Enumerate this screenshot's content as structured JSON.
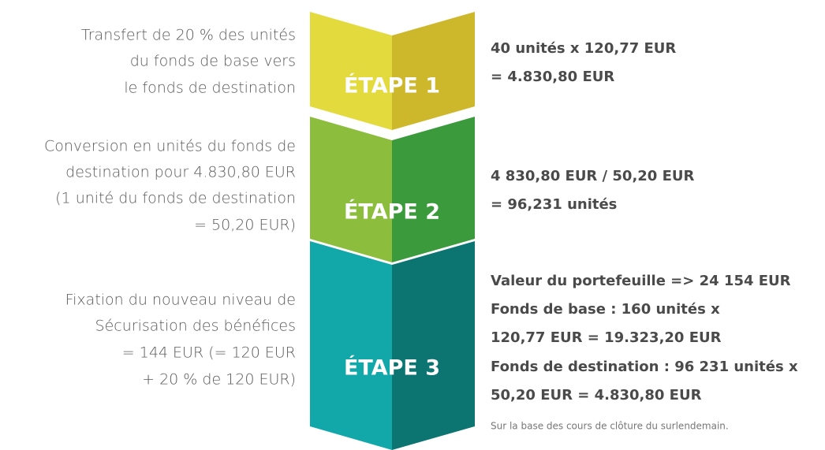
{
  "steps": [
    {
      "label": "ÉTAPE 1",
      "description": [
        "Transfert de 20 % des unités",
        "du fonds de base vers",
        "le fonds de destination"
      ],
      "calculation": [
        "40 unités x 120,77 EUR",
        "= 4.830,80 EUR"
      ]
    },
    {
      "label": "ÉTAPE 2",
      "description": [
        "Conversion en unités du fonds de",
        "destination pour 4.830,80 EUR",
        "(1 unité du fonds de destination",
        "= 50,20 EUR)"
      ],
      "calculation": [
        "4 830,80 EUR / 50,20 EUR",
        "= 96,231 unités"
      ]
    },
    {
      "label": "ÉTAPE 3",
      "description": [
        "Fixation du nouveau niveau de",
        "Sécurisation des bénéfices",
        "= 144 EUR (= 120 EUR",
        "+ 20 % de 120 EUR)"
      ],
      "calculation": [
        "Valeur du portefeuille => 24 154 EUR",
        "Fonds de base : 160 unités x",
        "120,77 EUR = 19.323,20 EUR",
        "Fonds de destination : 96 231 unités x",
        "50,20 EUR = 4.830,80 EUR"
      ]
    }
  ],
  "note": "Sur la base des cours de clôture du surlendemain."
}
